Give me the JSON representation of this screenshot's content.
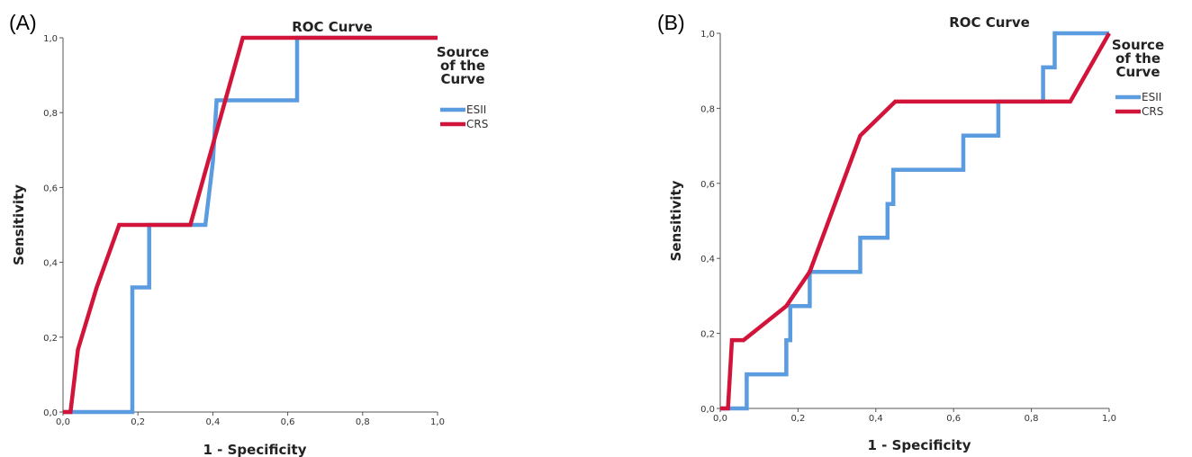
{
  "chart_data": [
    {
      "panel_label": "(A)",
      "type": "line",
      "title": "ROC Curve",
      "xlabel": "1 - Specificity",
      "ylabel": "Sensitivity",
      "xlim": [
        0,
        1
      ],
      "ylim": [
        0,
        1
      ],
      "xticks": [
        "0,0",
        "0,2",
        "0,4",
        "0,6",
        "0,8",
        "1,0"
      ],
      "yticks": [
        "0,0",
        "0,2",
        "0,4",
        "0,6",
        "0,8",
        "1,0"
      ],
      "grid": false,
      "legend_title": "Source of the Curve",
      "legend_position": "right",
      "series": [
        {
          "name": "ESII",
          "color": "#5b9be0",
          "x": [
            0,
            0.185,
            0.185,
            0.23,
            0.23,
            0.38,
            0.4,
            0.4,
            0.41,
            0.41,
            0.625,
            0.625,
            1.0
          ],
          "y": [
            0,
            0,
            0.333,
            0.333,
            0.5,
            0.5,
            0.667,
            0.667,
            0.833,
            0.833,
            0.833,
            1.0,
            1.0
          ]
        },
        {
          "name": "CRS",
          "color": "#d2143a",
          "x": [
            0,
            0.02,
            0.04,
            0.09,
            0.15,
            0.34,
            0.41,
            0.48,
            1.0
          ],
          "y": [
            0,
            0,
            0.167,
            0.333,
            0.5,
            0.5,
            0.75,
            1.0,
            1.0
          ]
        }
      ]
    },
    {
      "panel_label": "(B)",
      "type": "line",
      "title": "ROC Curve",
      "xlabel": "1 - Specificity",
      "ylabel": "Sensitivity",
      "xlim": [
        0,
        1
      ],
      "ylim": [
        0,
        1
      ],
      "xticks": [
        "0,0",
        "0,2",
        "0,4",
        "0,6",
        "0,8",
        "1,0"
      ],
      "yticks": [
        "0,0",
        "0,2",
        "0,4",
        "0,6",
        "0,8",
        "1,0"
      ],
      "grid": false,
      "legend_title": "Source of the Curve",
      "legend_position": "right",
      "series": [
        {
          "name": "ESII",
          "color": "#5b9be0",
          "x": [
            0,
            0.068,
            0.068,
            0.17,
            0.17,
            0.18,
            0.18,
            0.23,
            0.23,
            0.36,
            0.36,
            0.43,
            0.43,
            0.445,
            0.445,
            0.625,
            0.625,
            0.715,
            0.715,
            0.83,
            0.83,
            0.86,
            0.86,
            0.96,
            1.0
          ],
          "y": [
            0,
            0,
            0.091,
            0.091,
            0.182,
            0.182,
            0.273,
            0.273,
            0.364,
            0.364,
            0.455,
            0.455,
            0.545,
            0.545,
            0.636,
            0.636,
            0.727,
            0.727,
            0.818,
            0.818,
            0.909,
            0.909,
            1.0,
            1.0,
            1.0
          ]
        },
        {
          "name": "CRS",
          "color": "#d2143a",
          "x": [
            0,
            0.02,
            0.03,
            0.06,
            0.17,
            0.23,
            0.36,
            0.45,
            0.9,
            1.0
          ],
          "y": [
            0,
            0,
            0.182,
            0.182,
            0.273,
            0.364,
            0.727,
            0.818,
            0.818,
            1.0
          ]
        }
      ]
    }
  ]
}
